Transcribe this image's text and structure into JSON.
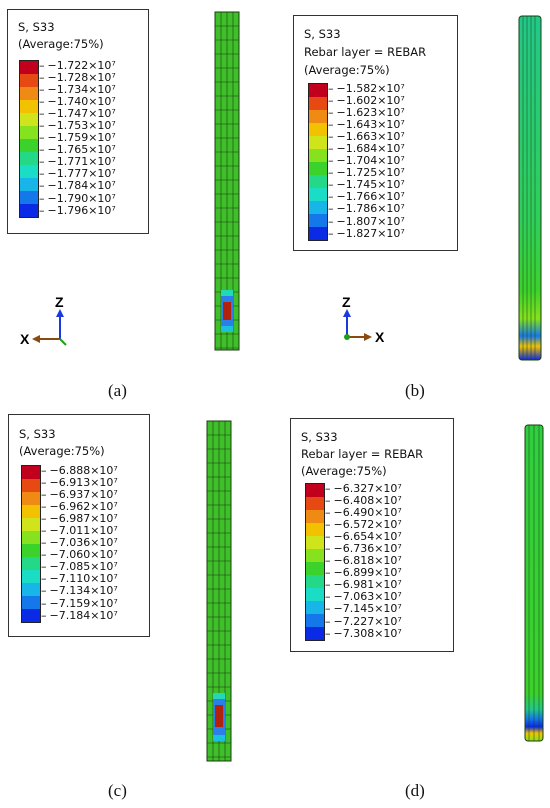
{
  "colors": [
    "#c0001c",
    "#e64a12",
    "#ef8a14",
    "#f2c200",
    "#cfe41a",
    "#86e21e",
    "#3cd22c",
    "#23d886",
    "#1bdcc4",
    "#18b6e8",
    "#1478ea",
    "#0a2ae6"
  ],
  "panels": [
    {
      "id": "a",
      "legend_title": [
        "S, S33",
        "(Average:75%)"
      ],
      "values": [
        "−1.722×10⁷",
        "−1.728×10⁷",
        "−1.734×10⁷",
        "−1.740×10⁷",
        "−1.747×10⁷",
        "−1.753×10⁷",
        "−1.759×10⁷",
        "−1.765×10⁷",
        "−1.771×10⁷",
        "−1.777×10⁷",
        "−1.784×10⁷",
        "−1.790×10⁷",
        "−1.796×10⁷"
      ],
      "caption": "(a)",
      "axes": {
        "z": "Z",
        "x": "X"
      }
    },
    {
      "id": "b",
      "legend_title": [
        "S, S33",
        "Rebar layer = REBAR",
        "(Average:75%)"
      ],
      "values": [
        "−1.582×10⁷",
        "−1.602×10⁷",
        "−1.623×10⁷",
        "−1.643×10⁷",
        "−1.663×10⁷",
        "−1.684×10⁷",
        "−1.704×10⁷",
        "−1.725×10⁷",
        "−1.745×10⁷",
        "−1.766×10⁷",
        "−1.786×10⁷",
        "−1.807×10⁷",
        "−1.827×10⁷"
      ],
      "caption": "(b)",
      "axes": {
        "z": "Z",
        "x": "X"
      }
    },
    {
      "id": "c",
      "legend_title": [
        "S, S33",
        "(Average:75%)"
      ],
      "values": [
        "−6.888×10⁷",
        "−6.913×10⁷",
        "−6.937×10⁷",
        "−6.962×10⁷",
        "−6.987×10⁷",
        "−7.011×10⁷",
        "−7.036×10⁷",
        "−7.060×10⁷",
        "−7.085×10⁷",
        "−7.110×10⁷",
        "−7.134×10⁷",
        "−7.159×10⁷",
        "−7.184×10⁷"
      ],
      "caption": "(c)"
    },
    {
      "id": "d",
      "legend_title": [
        "S, S33",
        "Rebar layer = REBAR",
        "(Average:75%)"
      ],
      "values": [
        "−6.327×10⁷",
        "−6.408×10⁷",
        "−6.490×10⁷",
        "−6.572×10⁷",
        "−6.654×10⁷",
        "−6.736×10⁷",
        "−6.818×10⁷",
        "−6.899×10⁷",
        "−6.981×10⁷",
        "−7.063×10⁷",
        "−7.145×10⁷",
        "−7.227×10⁷",
        "−7.308×10⁷"
      ],
      "caption": "(d)"
    }
  ]
}
